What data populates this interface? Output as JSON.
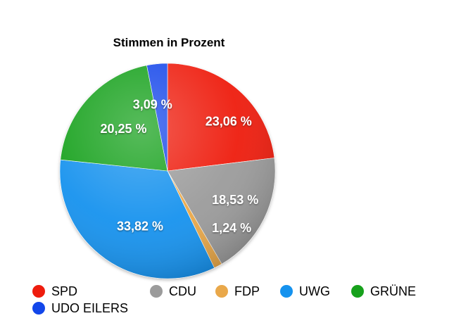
{
  "chart_data": {
    "type": "pie",
    "title": "Stimmen in Prozent",
    "start_angle_deg": 0,
    "direction": "clockwise",
    "slices": [
      {
        "name": "SPD",
        "value": 23.06,
        "label": "23,06 %",
        "color": "#ee1c0d"
      },
      {
        "name": "CDU",
        "value": 18.53,
        "label": "18,53 %",
        "color": "#9b9b9b"
      },
      {
        "name": "FDP",
        "value": 1.24,
        "label": "1,24 %",
        "color": "#e9a84a"
      },
      {
        "name": "UWG",
        "value": 33.82,
        "label": "33,82 %",
        "color": "#1592ee"
      },
      {
        "name": "GRÜNE",
        "value": 20.25,
        "label": "20,25 %",
        "color": "#17a11c"
      },
      {
        "name": "UDO EILERS",
        "value": 3.09,
        "label": "3,09 %",
        "color": "#1246ea"
      }
    ],
    "legend": {
      "placement": "bottom",
      "entries": [
        "SPD",
        "CDU",
        "FDP",
        "UWG",
        "GRÜNE",
        "UDO EILERS"
      ]
    }
  }
}
